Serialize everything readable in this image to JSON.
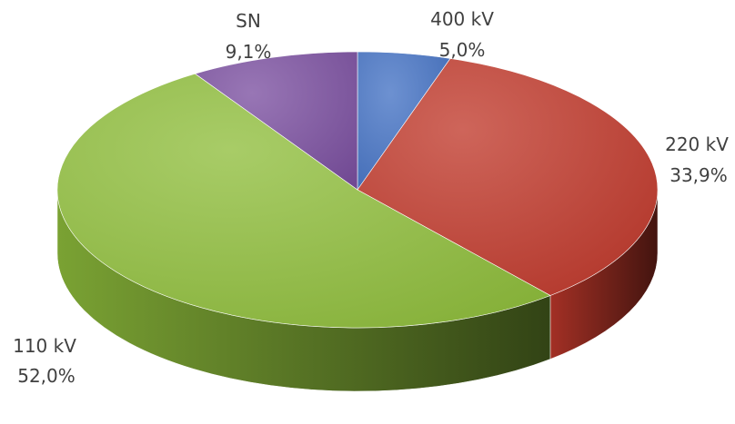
{
  "chart_data": {
    "type": "pie",
    "title": "",
    "style": "3d",
    "slices": [
      {
        "label": "400 kV",
        "percent_label": "5,0%",
        "value": 5.0,
        "color": "#4472c4"
      },
      {
        "label": "220 kV",
        "percent_label": "33,9%",
        "value": 33.9,
        "color": "#c0392b"
      },
      {
        "label": "110 kV",
        "percent_label": "52,0%",
        "value": 52.0,
        "color": "#8fbe3c"
      },
      {
        "label": "SN",
        "percent_label": "9,1%",
        "value": 9.1,
        "color": "#7b4fa0"
      }
    ]
  }
}
